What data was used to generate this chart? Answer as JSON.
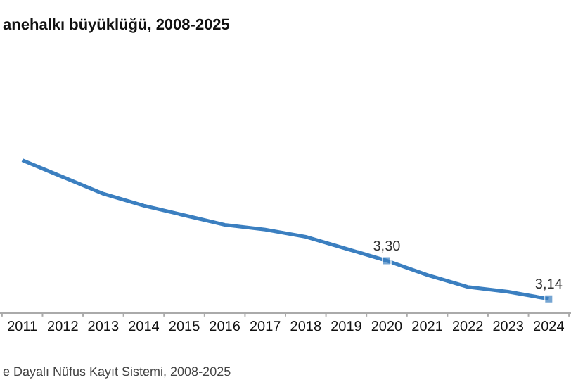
{
  "chart_data": {
    "type": "line",
    "title": "anehalkı büyüklüğü, 2008-2025",
    "annotations": [
      "e Dayalı Nüfus Kayıt Sistemi, 2008-2025"
    ],
    "categories": [
      "2011",
      "2012",
      "2013",
      "2014",
      "2015",
      "2016",
      "2017",
      "2018",
      "2019",
      "2020",
      "2021",
      "2022",
      "2023",
      "2024"
    ],
    "series": [
      {
        "color": "#3b7fc0",
        "values": [
          3.72,
          3.65,
          3.58,
          3.53,
          3.49,
          3.45,
          3.43,
          3.4,
          3.35,
          3.3,
          3.24,
          3.19,
          3.17,
          3.14
        ],
        "value_labels": [
          null,
          null,
          null,
          null,
          null,
          null,
          null,
          null,
          null,
          "3,30",
          null,
          null,
          null,
          "3,14"
        ]
      }
    ],
    "tick_labels": "x",
    "line_style": "solid"
  }
}
